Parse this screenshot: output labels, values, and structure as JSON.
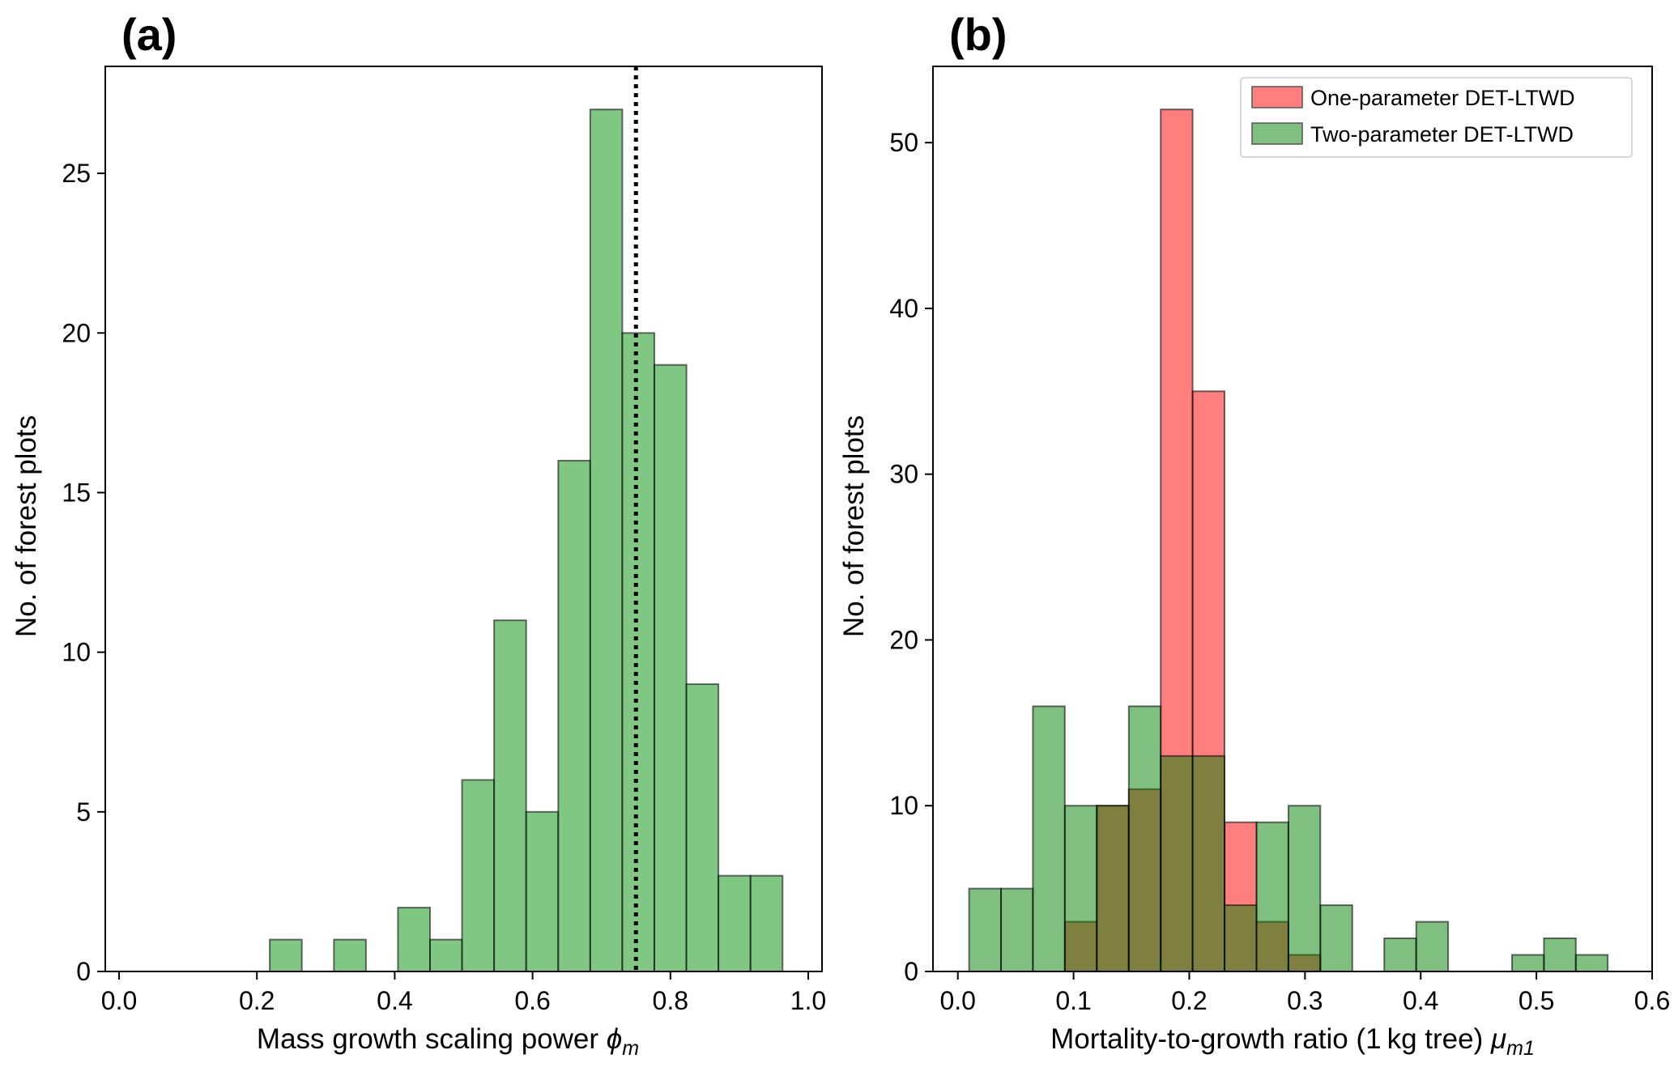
{
  "chart_data": [
    {
      "type": "bar",
      "subtype": "histogram",
      "panel_label": "(a)",
      "xlabel": "Mass growth scaling power",
      "xlabel_symbol": "ϕ",
      "xlabel_subscript": "m",
      "ylabel": "No. of forest plots",
      "xlim": [
        -0.02,
        1.02
      ],
      "ylim": [
        0,
        28.35
      ],
      "xticks": [
        "0.0",
        "0.2",
        "0.4",
        "0.6",
        "0.8",
        "1.0"
      ],
      "yticks": [
        "0",
        "5",
        "10",
        "15",
        "20",
        "25"
      ],
      "bin_width": 0.0465,
      "grid": false,
      "reference_line": {
        "x": 0.75,
        "style": "dotted",
        "color": "#000000"
      },
      "series": [
        {
          "color": "#4caf50",
          "opacity": 0.7,
          "bins": [
            {
              "x0": 0.2187,
              "count": 1
            },
            {
              "x0": 0.3117,
              "count": 1
            },
            {
              "x0": 0.4047,
              "count": 2
            },
            {
              "x0": 0.4512,
              "count": 1
            },
            {
              "x0": 0.4977,
              "count": 6
            },
            {
              "x0": 0.5442,
              "count": 11
            },
            {
              "x0": 0.5907,
              "count": 5
            },
            {
              "x0": 0.6372,
              "count": 16
            },
            {
              "x0": 0.6837,
              "count": 27
            },
            {
              "x0": 0.7302,
              "count": 20
            },
            {
              "x0": 0.7767,
              "count": 19
            },
            {
              "x0": 0.8232,
              "count": 9
            },
            {
              "x0": 0.8697,
              "count": 3
            },
            {
              "x0": 0.9162,
              "count": 3
            }
          ]
        }
      ]
    },
    {
      "type": "bar",
      "subtype": "histogram",
      "panel_label": "(b)",
      "xlabel": "Mortality-to-growth ratio (1 kg tree)",
      "xlabel_symbol": "μ",
      "xlabel_subscript": "m1",
      "ylabel": "No. of forest plots",
      "xlim": [
        -0.0215,
        0.6
      ],
      "ylim": [
        0,
        54.6
      ],
      "xticks": [
        "0.0",
        "0.1",
        "0.2",
        "0.3",
        "0.4",
        "0.5",
        "0.6"
      ],
      "yticks": [
        "0",
        "10",
        "20",
        "30",
        "40",
        "50"
      ],
      "bin_width": 0.0276,
      "grid": false,
      "legend": {
        "position": "top-right"
      },
      "series": [
        {
          "name": "One-parameter DET-LTWD",
          "color": "#ff0000",
          "opacity": 0.5,
          "bins": [
            {
              "x0": 0.0925,
              "count": 3
            },
            {
              "x0": 0.1201,
              "count": 10
            },
            {
              "x0": 0.1477,
              "count": 11
            },
            {
              "x0": 0.1753,
              "count": 52
            },
            {
              "x0": 0.2029,
              "count": 35
            },
            {
              "x0": 0.2305,
              "count": 9
            },
            {
              "x0": 0.2581,
              "count": 3
            },
            {
              "x0": 0.2857,
              "count": 1
            }
          ]
        },
        {
          "name": "Two-parameter DET-LTWD",
          "color": "#008000",
          "opacity": 0.5,
          "bins": [
            {
              "x0": 0.0097,
              "count": 5
            },
            {
              "x0": 0.0373,
              "count": 5
            },
            {
              "x0": 0.0649,
              "count": 16
            },
            {
              "x0": 0.0925,
              "count": 10
            },
            {
              "x0": 0.1201,
              "count": 10
            },
            {
              "x0": 0.1477,
              "count": 16
            },
            {
              "x0": 0.1753,
              "count": 13
            },
            {
              "x0": 0.2029,
              "count": 13
            },
            {
              "x0": 0.2305,
              "count": 4
            },
            {
              "x0": 0.2581,
              "count": 9
            },
            {
              "x0": 0.2857,
              "count": 10
            },
            {
              "x0": 0.3133,
              "count": 4
            },
            {
              "x0": 0.3685,
              "count": 2
            },
            {
              "x0": 0.3961,
              "count": 3
            },
            {
              "x0": 0.4789,
              "count": 1
            },
            {
              "x0": 0.5065,
              "count": 2
            },
            {
              "x0": 0.5341,
              "count": 1
            }
          ]
        }
      ]
    }
  ]
}
